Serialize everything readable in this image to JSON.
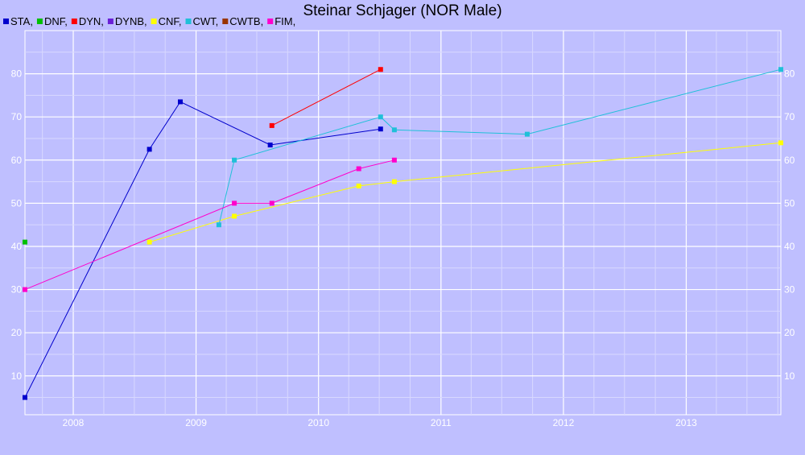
{
  "chart_data": {
    "type": "line",
    "title": "Steinar Schjager (NOR Male)",
    "xlabel": "",
    "ylabel": "",
    "x_ticks": [
      "2008",
      "2009",
      "2010",
      "2011",
      "2012",
      "2013"
    ],
    "y_ticks": [
      10,
      20,
      30,
      40,
      50,
      60,
      70,
      80
    ],
    "xlim": [
      "2007-08-10",
      "2013-10-10"
    ],
    "ylim": [
      1,
      90
    ],
    "grid": true,
    "legend_position": "top-left",
    "series": [
      {
        "name": "STA,",
        "color": "#0000cc",
        "points": [
          [
            "2007-08-10",
            5
          ],
          [
            "2008-08-15",
            62.5
          ],
          [
            "2008-11-15",
            73.5
          ],
          [
            "2009-08-10",
            63.5
          ],
          [
            "2010-07-05",
            67.2
          ]
        ]
      },
      {
        "name": "DNF,",
        "color": "#00c000",
        "points": [
          [
            "2007-08-10",
            41
          ]
        ]
      },
      {
        "name": "DYN,",
        "color": "#ff0000",
        "points": [
          [
            "2009-08-15",
            68
          ],
          [
            "2010-07-05",
            81
          ]
        ]
      },
      {
        "name": "DYNB,",
        "color": "#6a1fd6",
        "points": []
      },
      {
        "name": "CNF,",
        "color": "#ffff00",
        "points": [
          [
            "2008-08-15",
            41
          ],
          [
            "2009-04-25",
            47
          ],
          [
            "2010-05-01",
            54
          ],
          [
            "2010-08-15",
            55
          ],
          [
            "2013-10-10",
            64
          ]
        ]
      },
      {
        "name": "CWT,",
        "color": "#20c0d8",
        "points": [
          [
            "2009-03-10",
            45
          ],
          [
            "2009-04-25",
            60
          ],
          [
            "2010-07-05",
            70
          ],
          [
            "2010-08-15",
            67
          ],
          [
            "2011-09-15",
            66
          ],
          [
            "2013-10-10",
            81
          ]
        ]
      },
      {
        "name": "CWTB,",
        "color": "#993300",
        "points": []
      },
      {
        "name": "FIM,",
        "color": "#ff00cc",
        "points": [
          [
            "2007-08-10",
            30
          ],
          [
            "2009-04-25",
            50
          ],
          [
            "2009-08-15",
            50
          ],
          [
            "2010-05-01",
            58
          ],
          [
            "2010-08-15",
            60
          ]
        ]
      }
    ]
  }
}
